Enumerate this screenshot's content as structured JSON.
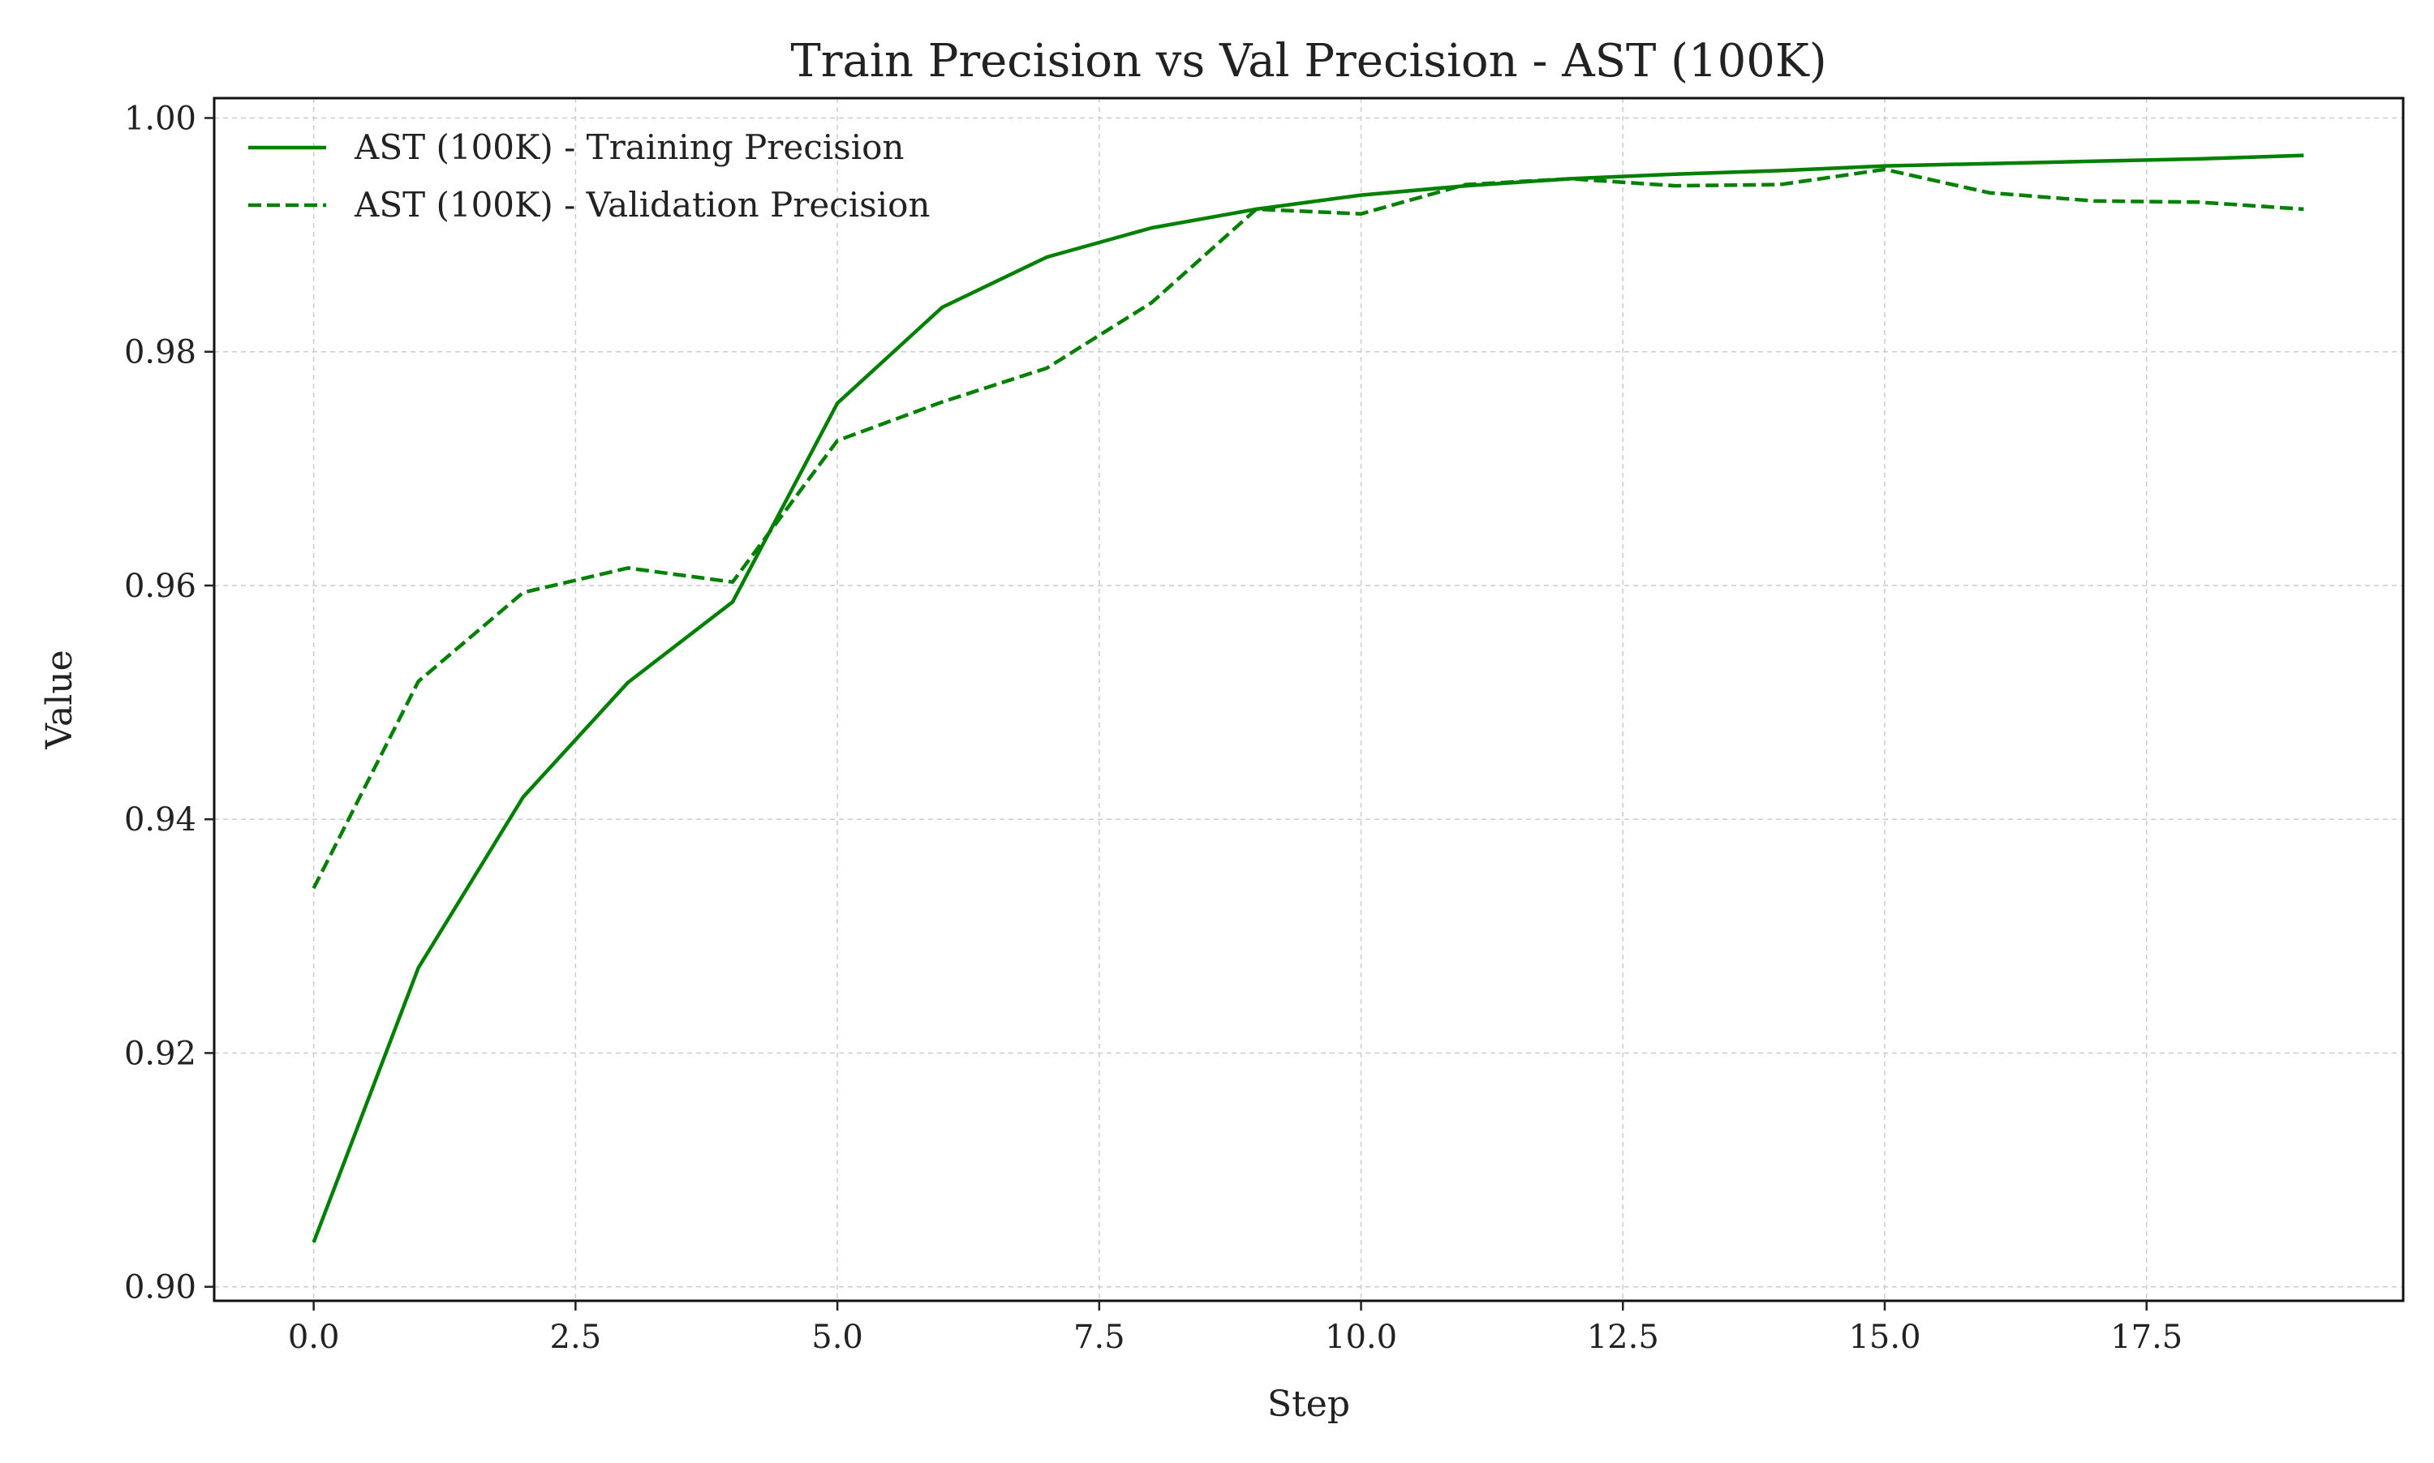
{
  "chart_data": {
    "type": "line",
    "title": "Train Precision vs Val Precision - AST (100K)",
    "xlabel": "Step",
    "ylabel": "Value",
    "xlim": [
      -0.95,
      19.95
    ],
    "ylim": [
      0.8988,
      1.0017
    ],
    "xticks": [
      0,
      2.5,
      5,
      7.5,
      10,
      12.5,
      15,
      17.5
    ],
    "xtick_labels": [
      "0.0",
      "2.5",
      "5.0",
      "7.5",
      "10.0",
      "12.5",
      "15.0",
      "17.5"
    ],
    "yticks": [
      0.9,
      0.92,
      0.94,
      0.96,
      0.98,
      1.0
    ],
    "ytick_labels": [
      "0.90",
      "0.92",
      "0.94",
      "0.96",
      "0.98",
      "1.00"
    ],
    "grid": true,
    "legend_position": "top-left",
    "x": [
      0,
      1,
      2,
      3,
      4,
      5,
      6,
      7,
      8,
      9,
      10,
      11,
      12,
      13,
      14,
      15,
      16,
      17,
      18,
      19
    ],
    "series": [
      {
        "name": "AST (100K) - Training Precision",
        "style": "solid",
        "color": "#008000",
        "values": [
          0.9038,
          0.9273,
          0.9419,
          0.9517,
          0.9586,
          0.9756,
          0.9838,
          0.9881,
          0.9906,
          0.9922,
          0.9934,
          0.9942,
          0.9948,
          0.9952,
          0.9955,
          0.9959,
          0.9961,
          0.9963,
          0.9965,
          0.9968
        ]
      },
      {
        "name": "AST (100K) - Validation Precision",
        "style": "dashed",
        "color": "#008000",
        "values": [
          0.9341,
          0.9518,
          0.9594,
          0.9615,
          0.9603,
          0.9724,
          0.9757,
          0.9786,
          0.9842,
          0.9922,
          0.9918,
          0.9943,
          0.9948,
          0.9942,
          0.9943,
          0.9956,
          0.9936,
          0.9929,
          0.9928,
          0.9922
        ]
      }
    ]
  }
}
